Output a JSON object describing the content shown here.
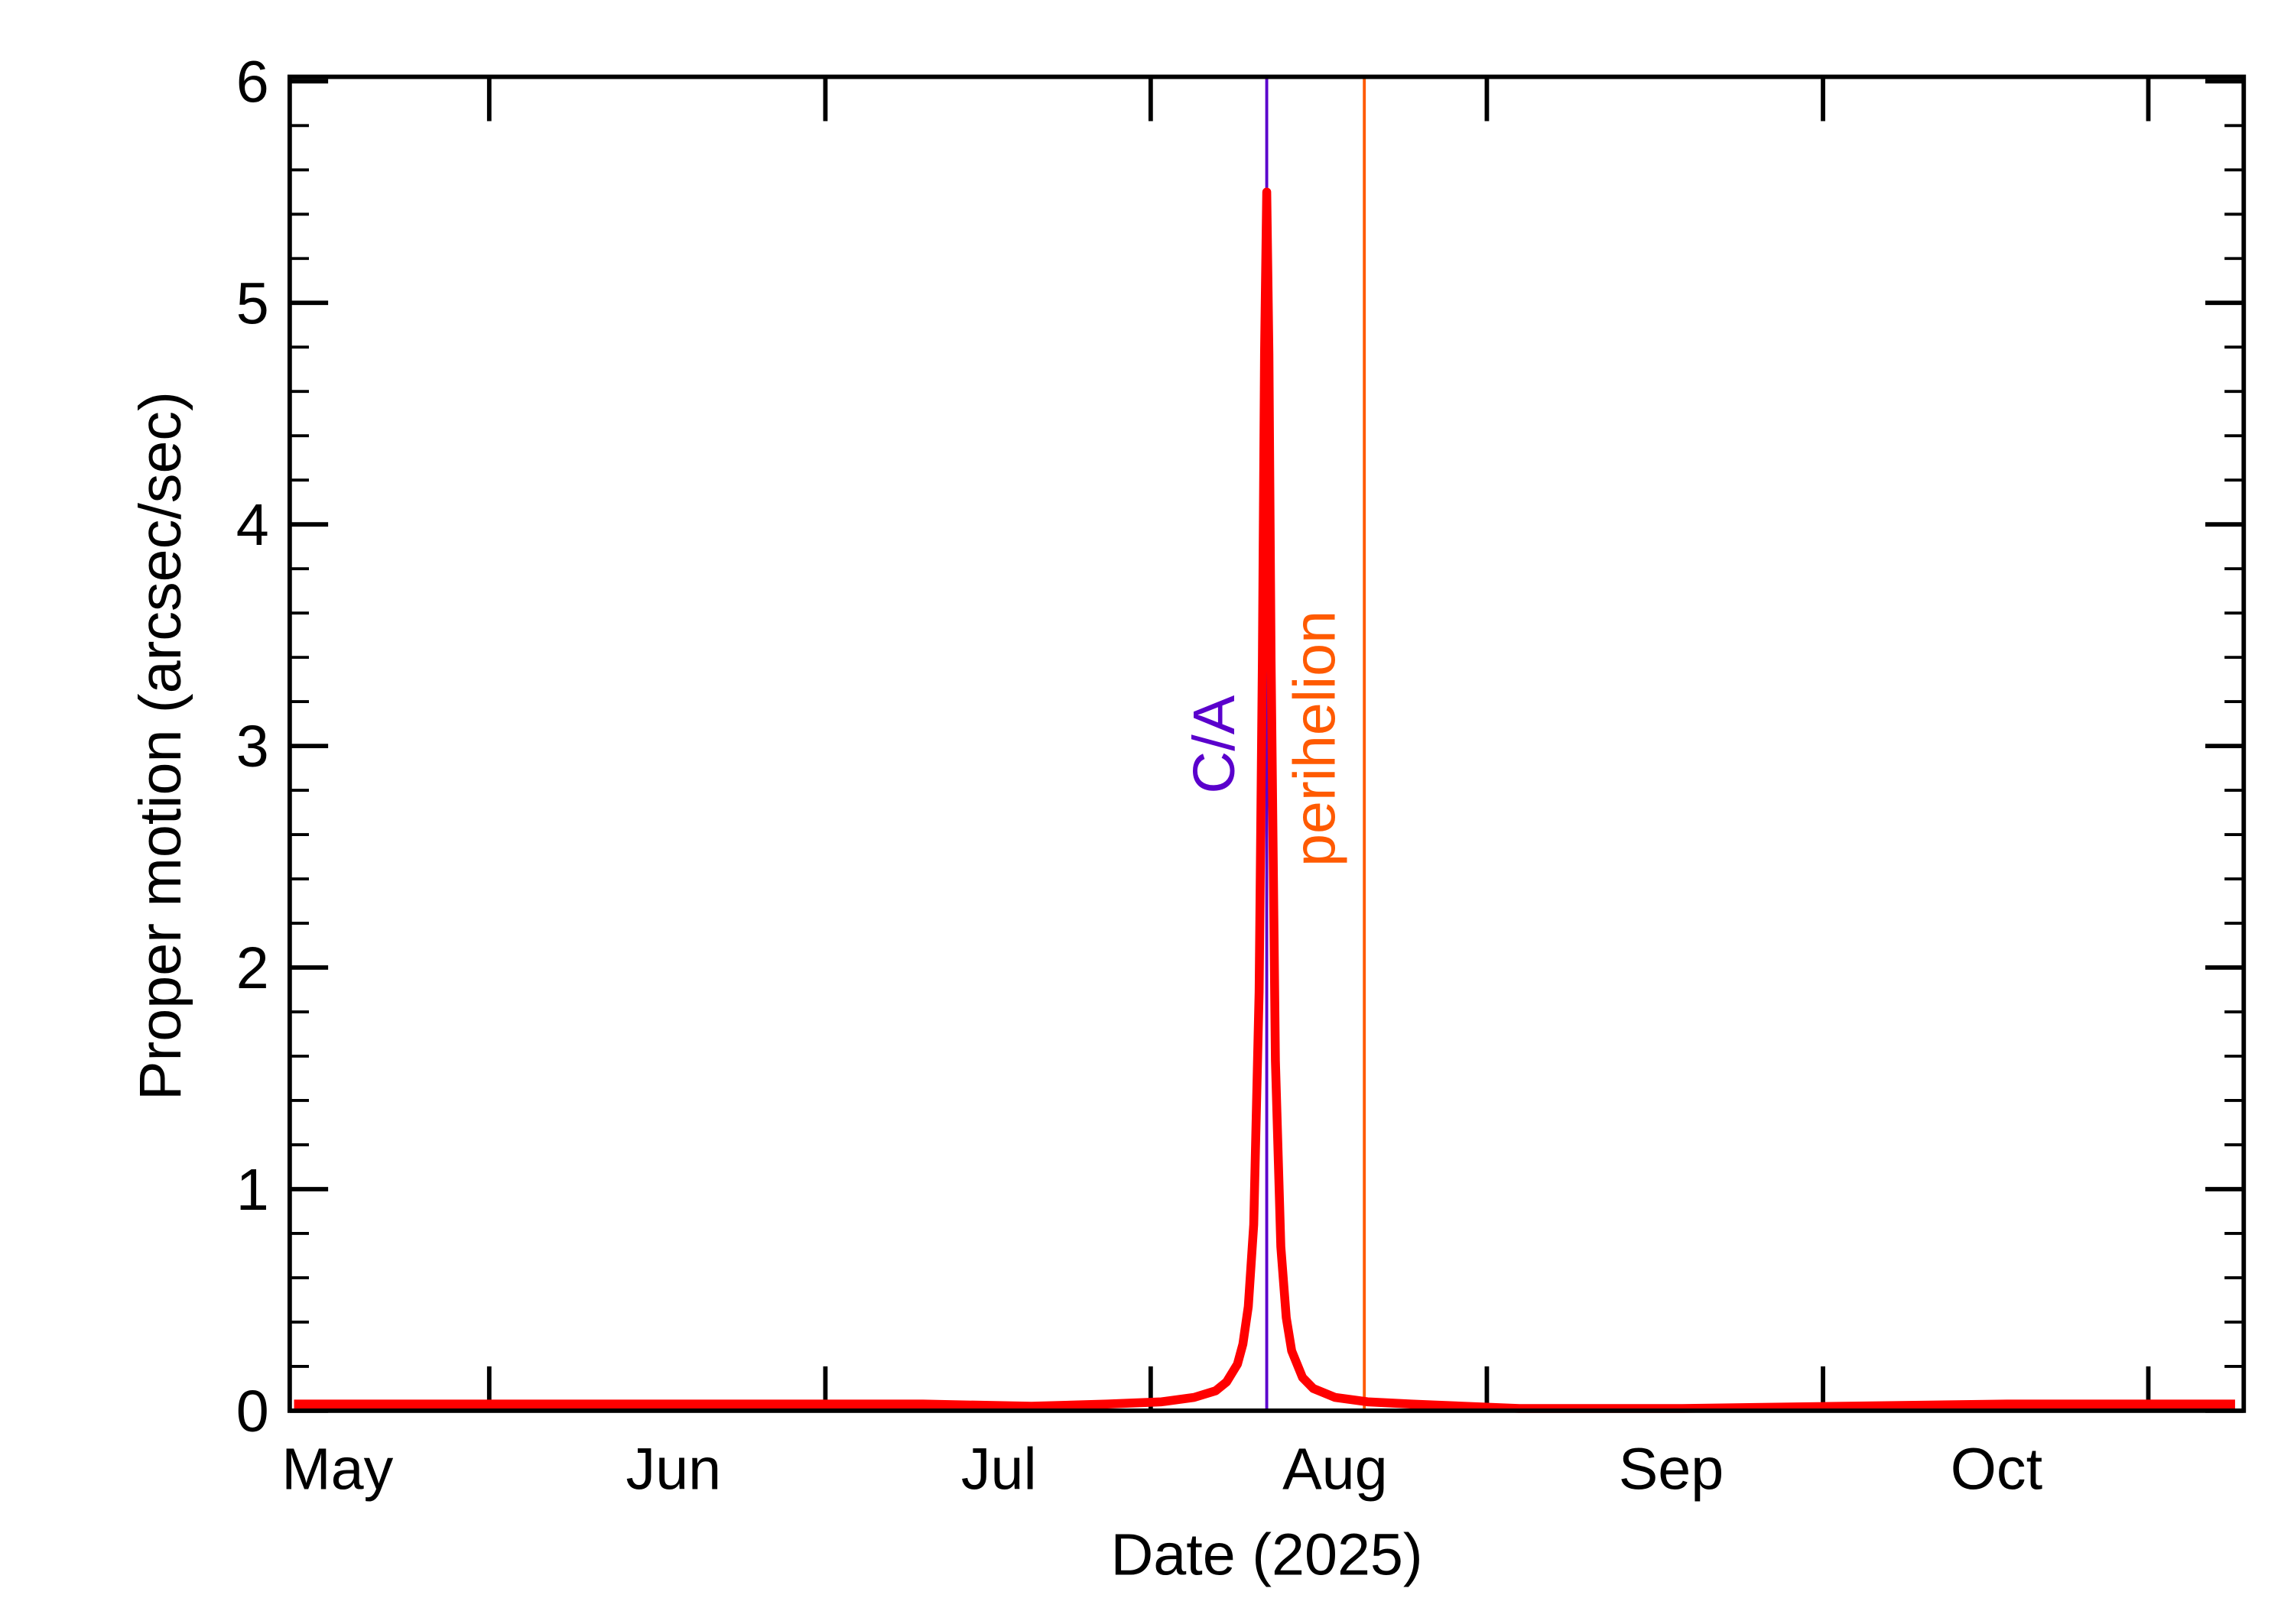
{
  "chart_data": {
    "type": "line",
    "xlabel": "Date (2025)",
    "ylabel": "Proper motion (arcsec/sec)",
    "x": [
      117,
      130,
      145,
      160,
      175,
      185,
      192,
      197,
      200,
      202,
      203,
      204,
      204.5,
      205,
      205.5,
      206,
      206.3,
      206.5,
      206.7,
      206.9,
      207.1,
      207.5,
      208,
      208.5,
      209,
      210,
      211,
      213,
      216,
      220,
      230,
      245,
      260,
      275,
      290,
      296
    ],
    "series": [
      {
        "name": "Proper motion",
        "color": "#ff0000",
        "values": [
          0.03,
          0.03,
          0.03,
          0.03,
          0.03,
          0.02,
          0.03,
          0.04,
          0.06,
          0.09,
          0.13,
          0.21,
          0.3,
          0.47,
          0.84,
          1.89,
          3.39,
          4.77,
          5.5,
          4.77,
          3.39,
          1.58,
          0.74,
          0.42,
          0.27,
          0.15,
          0.1,
          0.06,
          0.04,
          0.03,
          0.01,
          0.01,
          0.02,
          0.03,
          0.03,
          0.03
        ]
      }
    ],
    "xlim": [
      116.6,
      296.8
    ],
    "xticks": [
      {
        "value": 121,
        "label": "May"
      },
      {
        "value": 152,
        "label": "Jun"
      },
      {
        "value": 182,
        "label": "Jul"
      },
      {
        "value": 213,
        "label": "Aug"
      },
      {
        "value": 244,
        "label": "Sep"
      },
      {
        "value": 274,
        "label": "Oct"
      }
    ],
    "xtick_marks": [
      135,
      166,
      196,
      227,
      258,
      288
    ],
    "ylim": [
      0,
      6.02
    ],
    "yticks": [
      0,
      1,
      2,
      3,
      4,
      5,
      6
    ],
    "y_minor_per_major": 5,
    "annotations": [
      {
        "text": "C/A",
        "x": 206.7,
        "color": "#5a00cc"
      },
      {
        "text": "perihelion",
        "x": 215.7,
        "color": "#ff5a00"
      }
    ]
  }
}
